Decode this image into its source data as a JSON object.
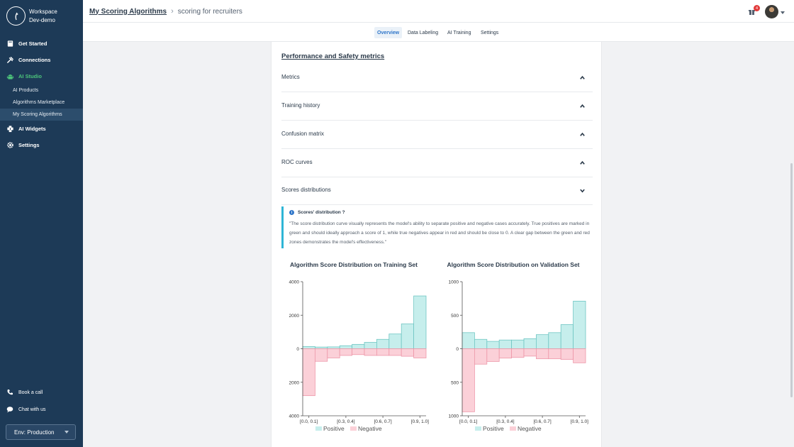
{
  "workspace": {
    "line1": "Workspace",
    "line2": "Dev-demo"
  },
  "sidebar": {
    "items": [
      {
        "label": "Get Started",
        "icon": "book-icon"
      },
      {
        "label": "Connections",
        "icon": "plug-icon"
      },
      {
        "label": "AI Studio",
        "icon": "android-icon",
        "active": true
      }
    ],
    "subitems": [
      "AI Products",
      "Algorithms Marketplace",
      "My Scoring Algorithms"
    ],
    "items2": [
      {
        "label": "AI Widgets",
        "icon": "puzzle-icon"
      },
      {
        "label": "Settings",
        "icon": "gear-icon"
      }
    ],
    "book_call": "Book a call",
    "chat": "Chat with us",
    "env": "Env: Production",
    "active_color": "#4cc37a"
  },
  "header": {
    "crumb_link": "My Scoring Algorithms",
    "crumb_current": "scoring for recruiters",
    "notifications": "4"
  },
  "tabs": [
    "Overview",
    "Data Labeling",
    "AI Training",
    "Settings"
  ],
  "main": {
    "section_title": "Performance and Safety metrics",
    "accordions": [
      {
        "label": "Metrics",
        "expanded": false
      },
      {
        "label": "Training history",
        "expanded": false
      },
      {
        "label": "Confusion matrix",
        "expanded": false
      },
      {
        "label": "ROC curves",
        "expanded": false
      },
      {
        "label": "Scores distributions",
        "expanded": true
      }
    ],
    "info_title": "Scores' distribution ?",
    "info_body": "\"The score distribution curve visually represents the model's ability to separate positive and negative cases accurately. True positives are marked in green and should ideally approach a score of 1, while true negatives appear in red and should be close to 0. A clear gap between the green and red zones demonstrates the model's effectiveness.\""
  },
  "chart_data": [
    {
      "type": "bar",
      "title": "Algorithm Score Distribution on Training Set",
      "categories": [
        "[0.0, 0.1]",
        "",
        "",
        "[0.3, 0.4]",
        "",
        "",
        "[0.6, 0.7]",
        "",
        "",
        "[0.9, 1.0]"
      ],
      "tick_labels": [
        "[0.0, 0.1]",
        "[0.3, 0.4]",
        "[0.6, 0.7]",
        "[0.9, 1.0]"
      ],
      "series": [
        {
          "name": "Positive",
          "values": [
            130,
            100,
            110,
            180,
            260,
            380,
            560,
            880,
            1480,
            3150
          ],
          "color": "#c6eeec"
        },
        {
          "name": "Negative",
          "values": [
            -2800,
            -750,
            -550,
            -400,
            -350,
            -400,
            -400,
            -400,
            -450,
            -550
          ],
          "color": "#fbd0d8"
        }
      ],
      "y_ticks": [
        4000,
        2000,
        0,
        2000,
        4000
      ],
      "ylim": [
        -4000,
        4000
      ],
      "legend": "bottom"
    },
    {
      "type": "bar",
      "title": "Algorithm Score Distribution on Validation Set",
      "categories": [
        "[0.0, 0.1]",
        "",
        "",
        "[0.3, 0.4]",
        "",
        "",
        "[0.6, 0.7]",
        "",
        "",
        "[0.9, 1.0]"
      ],
      "tick_labels": [
        "[0.0, 0.1]",
        "[0.3, 0.4]",
        "[0.6, 0.7]",
        "[0.9, 1.0]"
      ],
      "series": [
        {
          "name": "Positive",
          "values": [
            240,
            140,
            110,
            130,
            130,
            150,
            210,
            240,
            360,
            710
          ],
          "color": "#c6eeec"
        },
        {
          "name": "Negative",
          "values": [
            -940,
            -230,
            -190,
            -140,
            -130,
            -110,
            -150,
            -150,
            -160,
            -210
          ],
          "color": "#fbd0d8"
        }
      ],
      "y_ticks": [
        1000,
        500,
        0,
        500,
        1000
      ],
      "ylim": [
        -1000,
        1000
      ],
      "legend": "bottom"
    }
  ]
}
